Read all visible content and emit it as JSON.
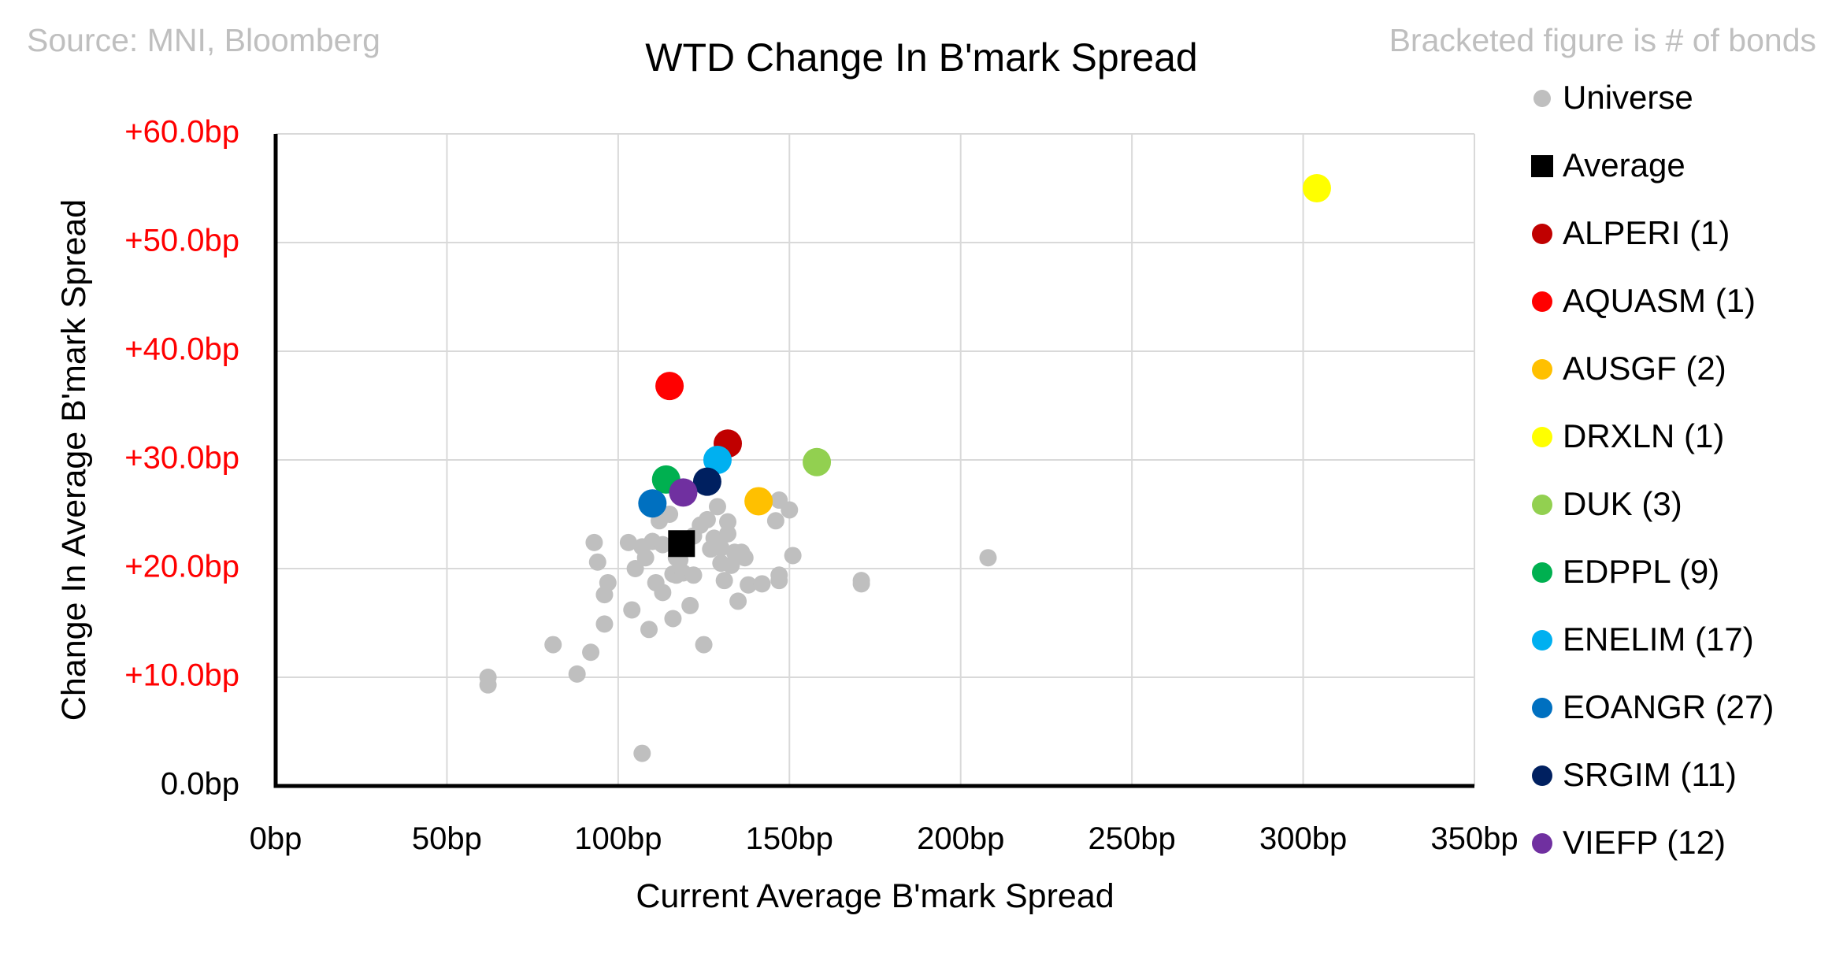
{
  "chart_data": {
    "type": "scatter",
    "title": "WTD Change In B'mark Spread",
    "source_note": "Source: MNI, Bloomberg",
    "legend_note": "Bracketed figure is # of bonds",
    "xlabel": "Current Average B'mark Spread",
    "ylabel": "Change In Average B'mark Spread",
    "xlim": [
      0,
      350
    ],
    "ylim": [
      0,
      60
    ],
    "x_ticks": [
      0,
      50,
      100,
      150,
      200,
      250,
      300,
      350
    ],
    "y_ticks": [
      0,
      10,
      20,
      30,
      40,
      50,
      60
    ],
    "x_tick_labels": [
      "0bp",
      "50bp",
      "100bp",
      "150bp",
      "200bp",
      "250bp",
      "300bp",
      "350bp"
    ],
    "y_tick_labels": [
      "0.0bp",
      "+10.0bp",
      "+20.0bp",
      "+30.0bp",
      "+40.0bp",
      "+50.0bp",
      "+60.0bp"
    ],
    "y_tick_color_positive": "#ff0000",
    "y_tick_color_zero": "#000000",
    "grid": true,
    "legend_position": "right",
    "series": [
      {
        "name": "Universe",
        "legend_label": "Universe",
        "color": "#bfbfbf",
        "marker": "circle-small",
        "points": [
          [
            62,
            10.0
          ],
          [
            62,
            9.3
          ],
          [
            81,
            13.0
          ],
          [
            88,
            10.3
          ],
          [
            92,
            12.3
          ],
          [
            93,
            22.4
          ],
          [
            94,
            20.6
          ],
          [
            96,
            17.6
          ],
          [
            96,
            14.9
          ],
          [
            97,
            18.7
          ],
          [
            103,
            22.4
          ],
          [
            104,
            16.2
          ],
          [
            105,
            20.0
          ],
          [
            107,
            3.0
          ],
          [
            107,
            22.0
          ],
          [
            108,
            21.0
          ],
          [
            109,
            14.4
          ],
          [
            110,
            22.5
          ],
          [
            111,
            18.7
          ],
          [
            112,
            24.4
          ],
          [
            113,
            22.2
          ],
          [
            113,
            17.8
          ],
          [
            115,
            25.0
          ],
          [
            116,
            19.5
          ],
          [
            116,
            15.4
          ],
          [
            117,
            21.0
          ],
          [
            117,
            19.4
          ],
          [
            118,
            20.8
          ],
          [
            119,
            19.6
          ],
          [
            120,
            22.5
          ],
          [
            121,
            16.6
          ],
          [
            122,
            19.4
          ],
          [
            122,
            23.0
          ],
          [
            124,
            24.0
          ],
          [
            125,
            13.0
          ],
          [
            126,
            24.5
          ],
          [
            127,
            21.8
          ],
          [
            128,
            22.8
          ],
          [
            129,
            25.7
          ],
          [
            130,
            20.5
          ],
          [
            130,
            21.9
          ],
          [
            131,
            18.9
          ],
          [
            132,
            23.2
          ],
          [
            132,
            24.3
          ],
          [
            133,
            20.3
          ],
          [
            134,
            21.5
          ],
          [
            135,
            17.0
          ],
          [
            136,
            21.5
          ],
          [
            137,
            21.0
          ],
          [
            138,
            18.5
          ],
          [
            142,
            18.6
          ],
          [
            146,
            24.4
          ],
          [
            147,
            26.3
          ],
          [
            147,
            19.4
          ],
          [
            147,
            18.9
          ],
          [
            150,
            25.4
          ],
          [
            151,
            21.2
          ],
          [
            171,
            18.9
          ],
          [
            171,
            18.6
          ],
          [
            208,
            21.0
          ]
        ]
      },
      {
        "name": "Average",
        "legend_label": "Average",
        "color": "#000000",
        "marker": "square",
        "points": [
          [
            118.5,
            22.3
          ]
        ]
      },
      {
        "name": "ALPERI",
        "legend_label": "ALPERI  (1)",
        "color": "#c00000",
        "marker": "circle",
        "points": [
          [
            132,
            31.5
          ]
        ]
      },
      {
        "name": "AQUASM",
        "legend_label": "AQUASM  (1)",
        "color": "#ff0000",
        "marker": "circle",
        "points": [
          [
            115,
            36.8
          ]
        ]
      },
      {
        "name": "AUSGF",
        "legend_label": "AUSGF  (2)",
        "color": "#ffc000",
        "marker": "circle",
        "points": [
          [
            141,
            26.2
          ]
        ]
      },
      {
        "name": "DRXLN",
        "legend_label": "DRXLN  (1)",
        "color": "#ffff00",
        "marker": "circle",
        "points": [
          [
            304,
            55.0
          ]
        ]
      },
      {
        "name": "DUK",
        "legend_label": "DUK  (3)",
        "color": "#92d050",
        "marker": "circle",
        "points": [
          [
            158,
            29.8
          ]
        ]
      },
      {
        "name": "EDPPL",
        "legend_label": "EDPPL  (9)",
        "color": "#00b050",
        "marker": "circle",
        "points": [
          [
            114,
            28.2
          ]
        ]
      },
      {
        "name": "ENELIM",
        "legend_label": "ENELIM  (17)",
        "color": "#00b0f0",
        "marker": "circle",
        "points": [
          [
            129,
            30.0
          ]
        ]
      },
      {
        "name": "EOANGR",
        "legend_label": "EOANGR  (27)",
        "color": "#0070c0",
        "marker": "circle",
        "points": [
          [
            110,
            26.0
          ]
        ]
      },
      {
        "name": "SRGIM",
        "legend_label": "SRGIM  (11)",
        "color": "#002060",
        "marker": "circle",
        "points": [
          [
            126,
            28.0
          ]
        ]
      },
      {
        "name": "VIEFP",
        "legend_label": "VIEFP  (12)",
        "color": "#7030a0",
        "marker": "circle",
        "points": [
          [
            119,
            27.0
          ]
        ]
      }
    ]
  }
}
